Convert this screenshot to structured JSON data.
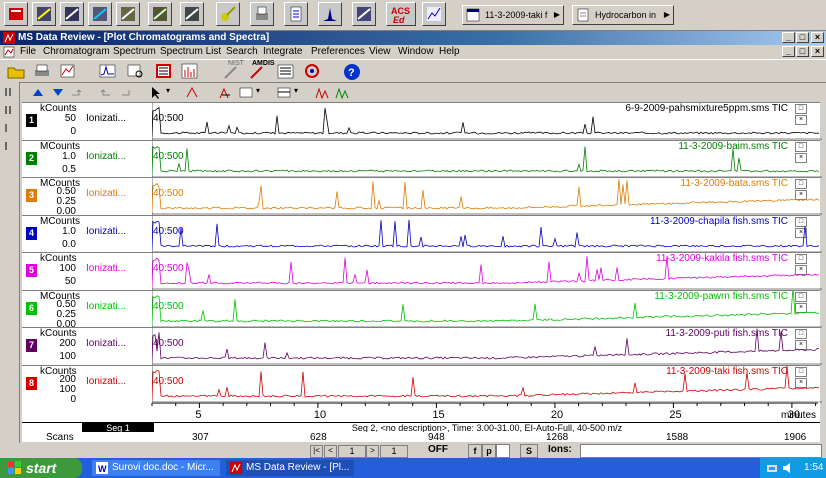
{
  "taskbar_top": {
    "tab1_label": "11-3-2009-taki f",
    "tab2_label": "Hydrocarbon in"
  },
  "window": {
    "title": "MS Data Review - [Plot Chromatograms and Spectra]",
    "icon": "ms-app-icon"
  },
  "menu": [
    "File",
    "Chromatogram",
    "Spectrum",
    "Spectrum List",
    "Search",
    "Integrate",
    "Preferences",
    "View",
    "Window",
    "Help"
  ],
  "toolbar": {
    "nist_label": "NIST",
    "amdis_label": "AMDIS"
  },
  "traces": [
    {
      "num": "1",
      "color": "#000000",
      "unit": "kCounts",
      "ticks": [
        "50",
        "0"
      ],
      "ion": "Ionizati...",
      "mass": "40:500",
      "label": "6-9-2009-pahsmixture5ppm.sms TIC"
    },
    {
      "num": "2",
      "color": "#008000",
      "unit": "MCounts",
      "ticks": [
        "1.0",
        "0.5"
      ],
      "ion": "Ionizati...",
      "mass": "40:500",
      "label": "11-3-2009-baim.sms TIC"
    },
    {
      "num": "3",
      "color": "#e07b00",
      "unit": "MCounts",
      "ticks": [
        "0.50",
        "0.25",
        "0.00"
      ],
      "ion": "Ionizati...",
      "mass": "40:500",
      "label": "11-3-2009-bata.sms TIC"
    },
    {
      "num": "4",
      "color": "#0000c0",
      "unit": "MCounts",
      "ticks": [
        "1.0",
        "0.0"
      ],
      "ion": "Ionizati...",
      "mass": "40:500",
      "label": "11-3-2009-chapila fish.sms TIC"
    },
    {
      "num": "5",
      "color": "#e000e0",
      "unit": "kCounts",
      "ticks": [
        "100",
        "50"
      ],
      "ion": "Ionizati...",
      "mass": "40:500",
      "label": "11-3-2009-kakila fish.sms TIC"
    },
    {
      "num": "6",
      "color": "#00c000",
      "unit": "MCounts",
      "ticks": [
        "0.50",
        "0.25",
        "0.00"
      ],
      "ion": "Ionizati...",
      "mass": "40:500",
      "label": "11-3-2009-pawrn fish.sms TIC"
    },
    {
      "num": "7",
      "color": "#600060",
      "unit": "kCounts",
      "ticks": [
        "200",
        "100"
      ],
      "ion": "Ionizati...",
      "mass": "40:500",
      "label": "11-3-2009-puti fish.sms TIC"
    },
    {
      "num": "8",
      "color": "#d00000",
      "unit": "kCounts",
      "ticks": [
        "200",
        "100",
        "0"
      ],
      "ion": "Ionizati...",
      "mass": "40:500",
      "label": "11-3-2009-taki fish.sms TIC"
    }
  ],
  "axis": {
    "x_ticks": [
      "5",
      "10",
      "15",
      "20",
      "25",
      "30"
    ],
    "x_unit": "minutes"
  },
  "segments": {
    "seg1": "Seg 1",
    "seg2": "Seg 2, <no description>, Time:  3.00-31.00, EI-Auto-Full, 40-500 m/z"
  },
  "scans": {
    "label": "Scans",
    "values": [
      "307",
      "628",
      "948",
      "1268",
      "1588",
      "1906"
    ]
  },
  "status": {
    "nav_value": "1",
    "off_label": "OFF",
    "btn_f": "f",
    "btn_p": "p",
    "btn_s": "S",
    "ions_label": "Ions:"
  },
  "taskbar": {
    "start": "start",
    "task1": "Surovi doc.doc - Micr...",
    "task2": "MS Data Review - [Pl...",
    "clock": "1:54"
  }
}
